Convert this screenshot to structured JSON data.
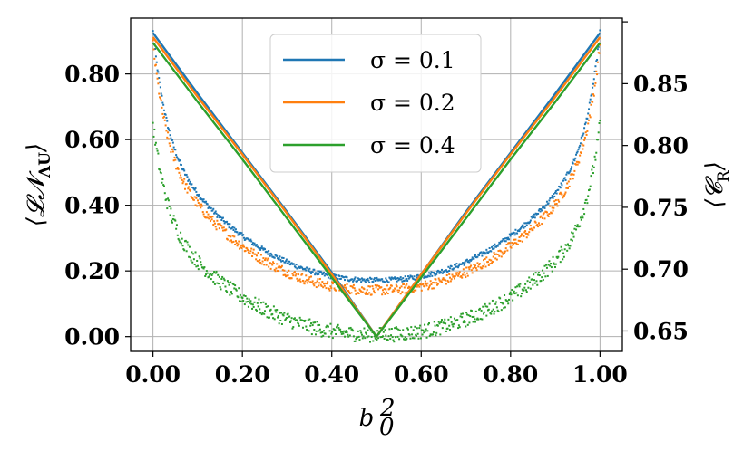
{
  "chart_data": {
    "type": "line",
    "xlabel": "b₀²",
    "ylabel_left": "⟨𝓛𝓝_ΛU⟩",
    "ylabel_right": "⟨𝓒_R⟩",
    "x_ticks": [
      "0.00",
      "0.20",
      "0.40",
      "0.60",
      "0.80",
      "1.00"
    ],
    "y_left_ticks": [
      "0.00",
      "0.20",
      "0.40",
      "0.60",
      "0.80"
    ],
    "y_right_ticks": [
      "0.65",
      "0.70",
      "0.75",
      "0.80",
      "0.85"
    ],
    "xlim": [
      -0.05,
      1.05
    ],
    "ylim_left": [
      -0.045,
      0.97
    ],
    "ylim_right": [
      0.6335,
      0.903
    ],
    "grid": true,
    "legend_position": "top-center",
    "series": [
      {
        "name": "σ = 0.1",
        "color": "#1f77b4",
        "line_x": [
          0,
          0.1,
          0.2,
          0.3,
          0.4,
          0.5,
          0.6,
          0.7,
          0.8,
          0.9,
          1.0
        ],
        "line_y": [
          0.925,
          0.74,
          0.56,
          0.38,
          0.195,
          0.0,
          0.19,
          0.38,
          0.56,
          0.74,
          0.925
        ],
        "scatter_min_right": 0.691,
        "scatter_edge_right": 0.892
      },
      {
        "name": "σ = 0.2",
        "color": "#ff7f0e",
        "line_x": [
          0,
          0.1,
          0.2,
          0.3,
          0.4,
          0.5,
          0.6,
          0.7,
          0.8,
          0.9,
          1.0
        ],
        "line_y": [
          0.912,
          0.73,
          0.555,
          0.375,
          0.19,
          0.0,
          0.19,
          0.375,
          0.555,
          0.73,
          0.912
        ],
        "scatter_min_right": 0.683,
        "scatter_edge_right": 0.882
      },
      {
        "name": "σ = 0.4",
        "color": "#2ca02c",
        "line_x": [
          0,
          0.1,
          0.2,
          0.3,
          0.4,
          0.5,
          0.6,
          0.7,
          0.8,
          0.9,
          1.0
        ],
        "line_y": [
          0.895,
          0.715,
          0.54,
          0.36,
          0.18,
          0.0,
          0.18,
          0.36,
          0.54,
          0.715,
          0.895
        ],
        "scatter_min_right": 0.647,
        "scatter_edge_right": 0.817
      }
    ]
  }
}
